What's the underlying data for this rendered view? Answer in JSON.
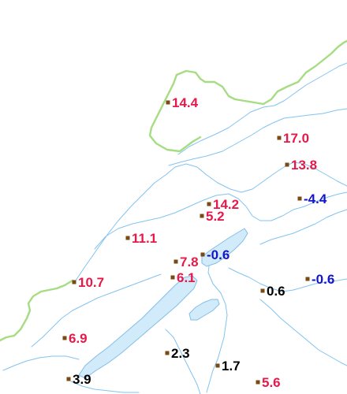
{
  "map": {
    "colors": {
      "border": "#a6dc82",
      "river": "#82c3f0",
      "lake_fill": "#d2ebfa",
      "lake_stroke": "#82bee6",
      "marker": "#7a4a12",
      "warm": "#e6194b",
      "cold": "#1414c8",
      "neutral": "#000000"
    },
    "stations": [
      {
        "id": "s-14-4",
        "value": "14.4",
        "class": "warm"
      },
      {
        "id": "s-17-0",
        "value": "17.0",
        "class": "warm"
      },
      {
        "id": "s-13-8",
        "value": "13.8",
        "class": "warm"
      },
      {
        "id": "s-14-2",
        "value": "14.2",
        "class": "warm"
      },
      {
        "id": "s-5-2",
        "value": "5.2",
        "class": "warm"
      },
      {
        "id": "s-m4-4",
        "value": "-4.4",
        "class": "cold"
      },
      {
        "id": "s-11-1",
        "value": "11.1",
        "class": "warm"
      },
      {
        "id": "s-7-8",
        "value": "7.8",
        "class": "warm"
      },
      {
        "id": "s-m0-6a",
        "value": "-0.6",
        "class": "cold"
      },
      {
        "id": "s-6-1",
        "value": "6.1",
        "class": "warm"
      },
      {
        "id": "s-10-7",
        "value": "10.7",
        "class": "warm"
      },
      {
        "id": "s-0-6",
        "value": "0.6",
        "class": "neutral"
      },
      {
        "id": "s-m0-6b",
        "value": "-0.6",
        "class": "cold"
      },
      {
        "id": "s-6-9",
        "value": "6.9",
        "class": "warm"
      },
      {
        "id": "s-2-3",
        "value": "2.3",
        "class": "neutral"
      },
      {
        "id": "s-1-7",
        "value": "1.7",
        "class": "neutral"
      },
      {
        "id": "s-3-9",
        "value": "3.9",
        "class": "neutral"
      },
      {
        "id": "s-5-6",
        "value": "5.6",
        "class": "warm"
      }
    ]
  }
}
